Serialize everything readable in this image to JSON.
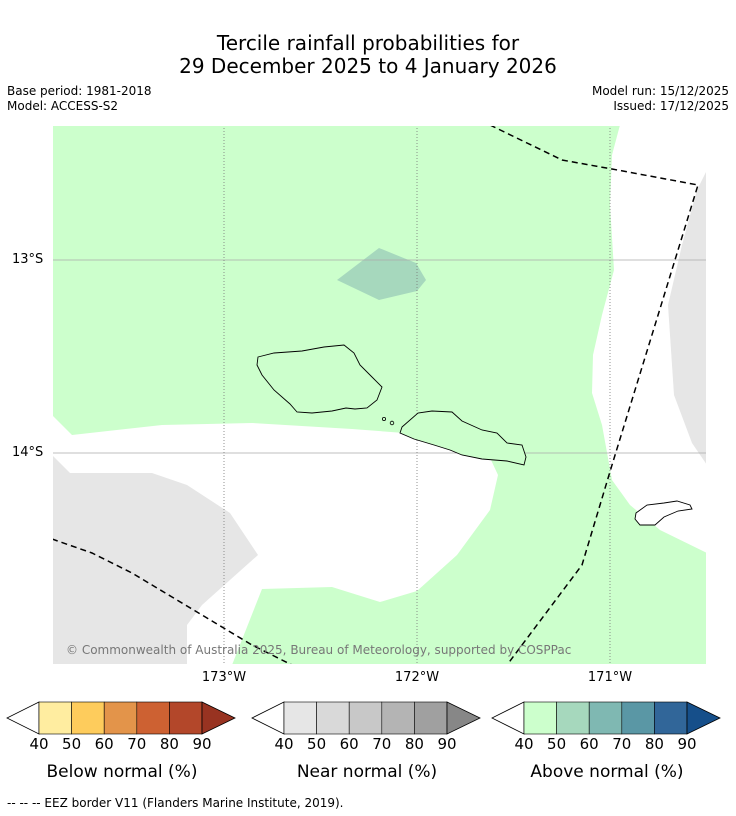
{
  "title": {
    "line1": "Tercile rainfall probabilities for",
    "line2": "29 December 2025 to 4 January 2026"
  },
  "meta": {
    "base_period": "Base period: 1981-2018",
    "model": "Model: ACCESS-S2",
    "model_run": "Model run: 15/12/2025",
    "issued": "Issued: 17/12/2025"
  },
  "map": {
    "lat_labels": [
      "13°S",
      "14°S"
    ],
    "lon_labels": [
      "173°W",
      "172°W",
      "171°W"
    ],
    "copyright": "© Commonwealth of Australia 2025, Bureau of Meteorology, supported by COSPPac"
  },
  "colorbars": [
    {
      "label": "Below normal (%)",
      "ticks": [
        "40",
        "50",
        "60",
        "70",
        "80",
        "90"
      ],
      "colors": [
        "#ffffff",
        "#ffeda0",
        "#fecc5c",
        "#e3944a",
        "#cd6132",
        "#b3472a",
        "#983321"
      ]
    },
    {
      "label": "Near normal (%)",
      "ticks": [
        "40",
        "50",
        "60",
        "70",
        "80",
        "90"
      ],
      "colors": [
        "#ffffff",
        "#e6e6e6",
        "#d9d9d9",
        "#c8c8c8",
        "#b4b4b4",
        "#a0a0a0",
        "#878787"
      ]
    },
    {
      "label": "Above normal (%)",
      "ticks": [
        "40",
        "50",
        "60",
        "70",
        "80",
        "90"
      ],
      "colors": [
        "#ffffff",
        "#ccffcc",
        "#a6d8bd",
        "#7fb8b2",
        "#5a97a5",
        "#316699",
        "#164f8a"
      ]
    }
  ],
  "footer": "--  --  -- EEZ border V11 (Flanders Marine Institute, 2019)."
}
